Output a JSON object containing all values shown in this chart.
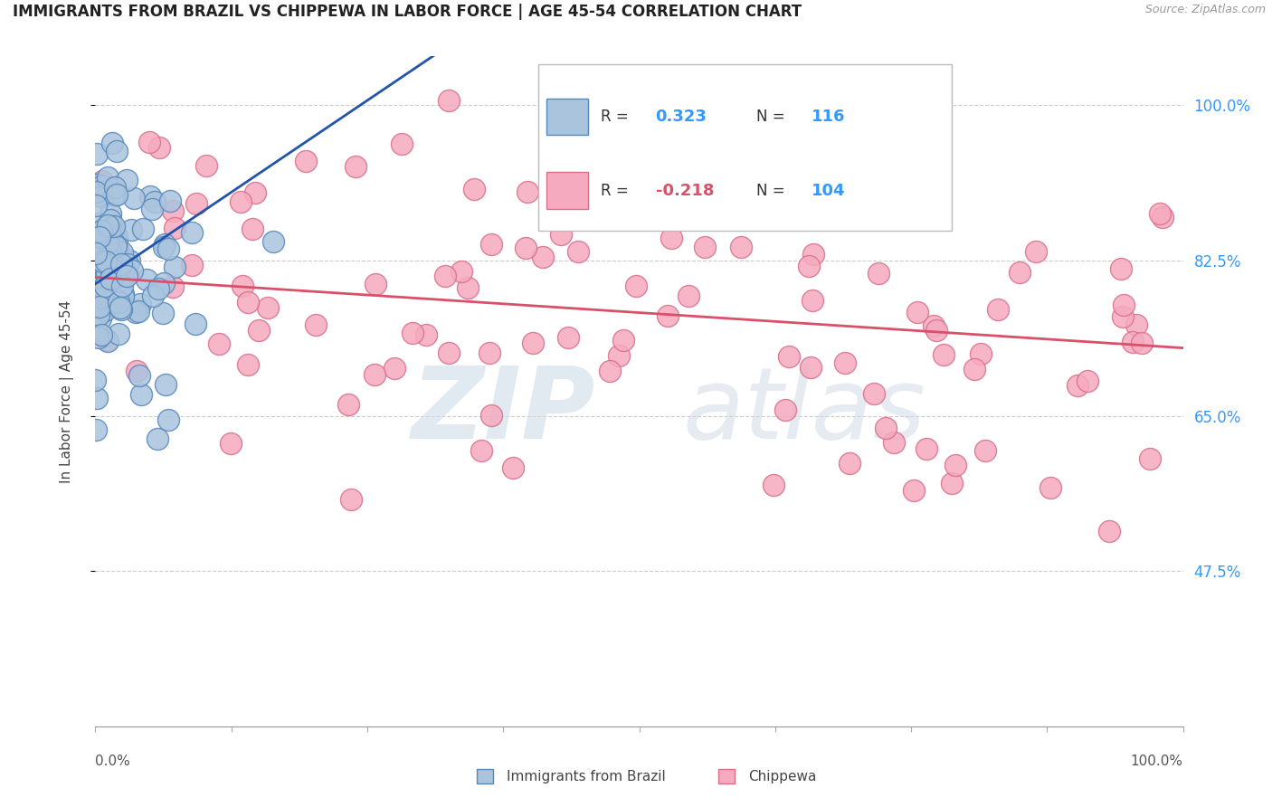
{
  "title": "IMMIGRANTS FROM BRAZIL VS CHIPPEWA IN LABOR FORCE | AGE 45-54 CORRELATION CHART",
  "source": "Source: ZipAtlas.com",
  "ylabel": "In Labor Force | Age 45-54",
  "ytick_vals": [
    0.475,
    0.65,
    0.825,
    1.0
  ],
  "ytick_labels": [
    "47.5%",
    "65.0%",
    "82.5%",
    "100.0%"
  ],
  "xmin": 0.0,
  "xmax": 1.0,
  "ymin": 0.3,
  "ymax": 1.055,
  "brazil_color": "#aac4de",
  "brazil_edge": "#5588bb",
  "chippewa_color": "#f5aabf",
  "chippewa_edge": "#d9708a",
  "brazil_R": 0.323,
  "brazil_N": 116,
  "chippewa_R": -0.218,
  "chippewa_N": 104,
  "brazil_line_color": "#2255aa",
  "chippewa_line_color": "#d9506a",
  "background_color": "#ffffff",
  "grid_color": "#cccccc",
  "title_color": "#222222",
  "right_tick_color": "#3399ff",
  "legend_box_edge": "#bbbbbb",
  "legend_text_color": "#333333",
  "legend_R_brazil_color": "#3399ff",
  "legend_R_chippewa_color": "#d9506a",
  "legend_N_color": "#3399ff",
  "bottom_legend_brazil_color": "#5588bb",
  "bottom_legend_chippewa_color": "#d9708a"
}
